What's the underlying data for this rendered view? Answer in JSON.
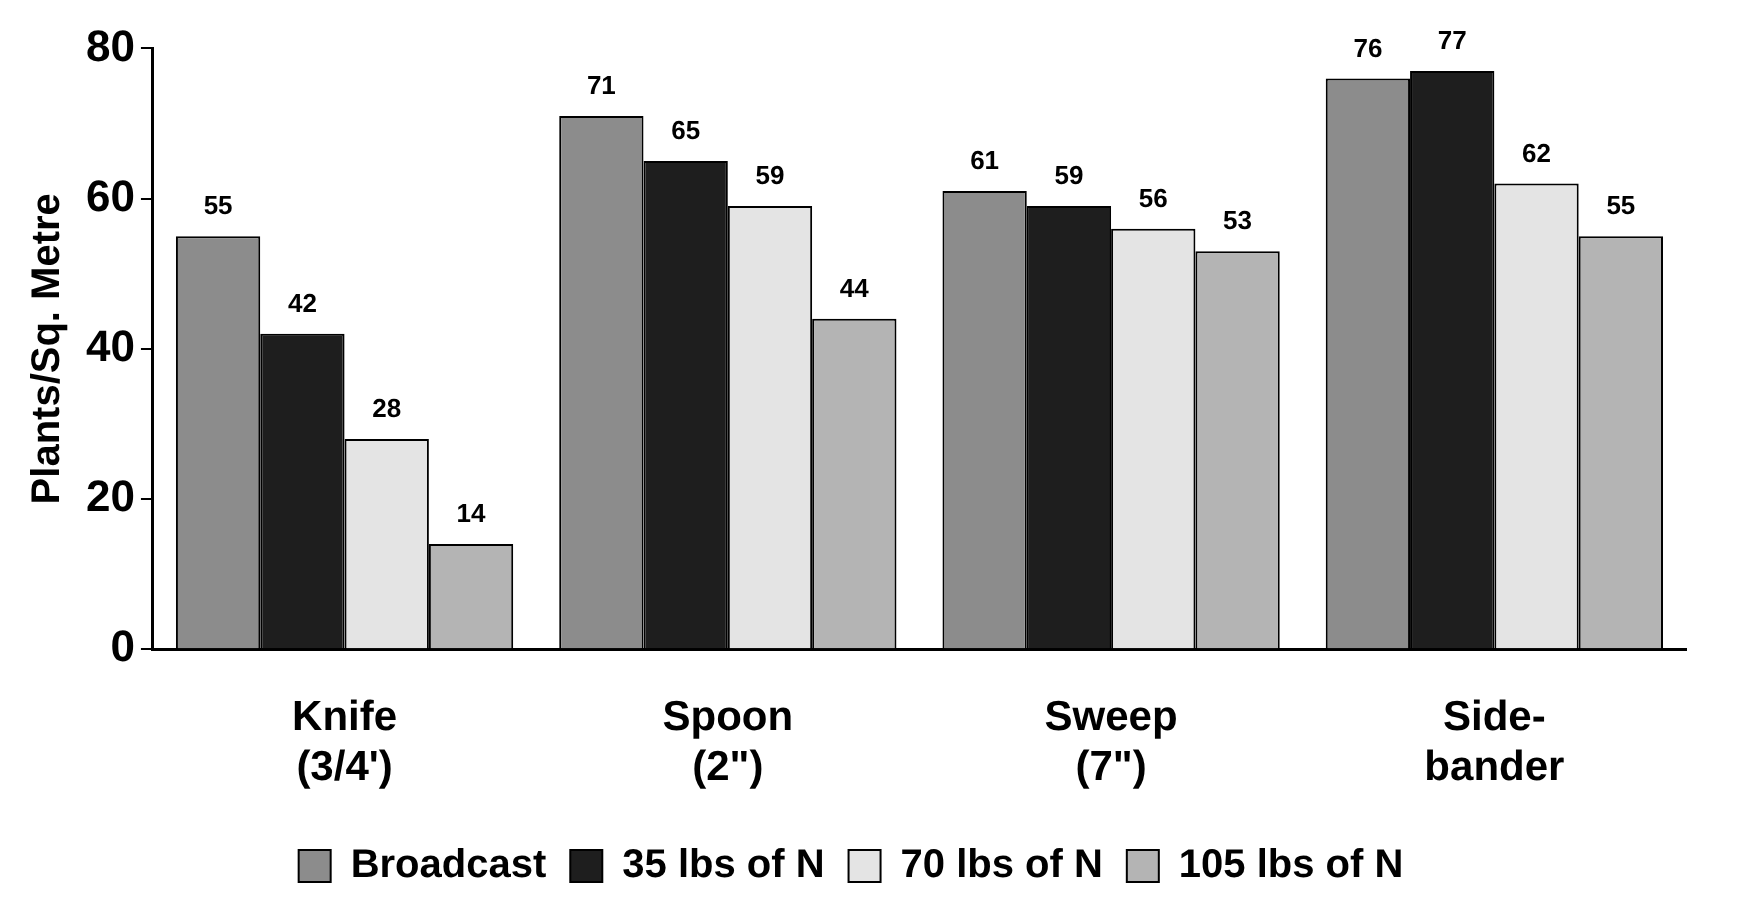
{
  "chart_data": {
    "type": "bar",
    "ylabel": "Plants/Sq. Metre",
    "categories": [
      "Knife (3/4')",
      "Spoon (2\")",
      "Sweep (7\")",
      "Side-bander"
    ],
    "series": [
      {
        "name": "Broadcast",
        "color": "#8c8c8c",
        "values": [
          55,
          71,
          61,
          76
        ]
      },
      {
        "name": "35 lbs of N",
        "color": "#1e1e1e",
        "values": [
          42,
          65,
          59,
          77
        ]
      },
      {
        "name": "70 lbs of N",
        "color": "#e4e4e4",
        "values": [
          28,
          59,
          56,
          62
        ]
      },
      {
        "name": "105 lbs of N",
        "color": "#b4b4b4",
        "values": [
          14,
          44,
          53,
          55
        ]
      }
    ],
    "ylim": [
      0,
      80
    ],
    "yticks": [
      0,
      20,
      40,
      60,
      80
    ],
    "grid": false,
    "legend": "bottom",
    "data_labels": true
  }
}
